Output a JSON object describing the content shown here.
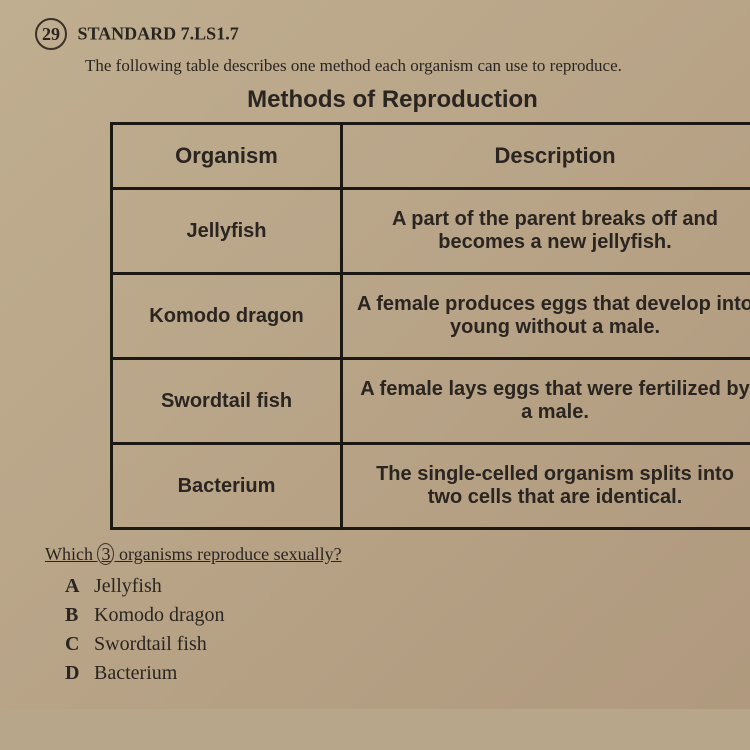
{
  "header": {
    "question_number": "29",
    "standard_label": "STANDARD 7.LS1.7"
  },
  "intro": "The following table describes one method each organism can use to reproduce.",
  "table": {
    "title": "Methods of Reproduction",
    "headers": {
      "col1": "Organism",
      "col2": "Description"
    },
    "rows": [
      {
        "organism": "Jellyfish",
        "description": "A part of the parent breaks off and becomes a new jellyfish."
      },
      {
        "organism": "Komodo dragon",
        "description": "A female produces eggs that develop into young without a male."
      },
      {
        "organism": "Swordtail fish",
        "description": "A female lays eggs that were fertilized by a male."
      },
      {
        "organism": "Bacterium",
        "description": "The single-celled organism splits into two cells that are identical."
      }
    ]
  },
  "question": {
    "prefix": "Which ",
    "circled": "3",
    "mid": " organisms ",
    "underlined": "reproduce",
    "suffix": " sexually?"
  },
  "choices": [
    {
      "letter": "A",
      "text": "Jellyfish"
    },
    {
      "letter": "B",
      "text": "Komodo dragon"
    },
    {
      "letter": "C",
      "text": "Swordtail fish"
    },
    {
      "letter": "D",
      "text": "Bacterium"
    }
  ],
  "colors": {
    "page_bg": "#b8a68a",
    "text": "#2a2520",
    "border": "#1c1814"
  }
}
